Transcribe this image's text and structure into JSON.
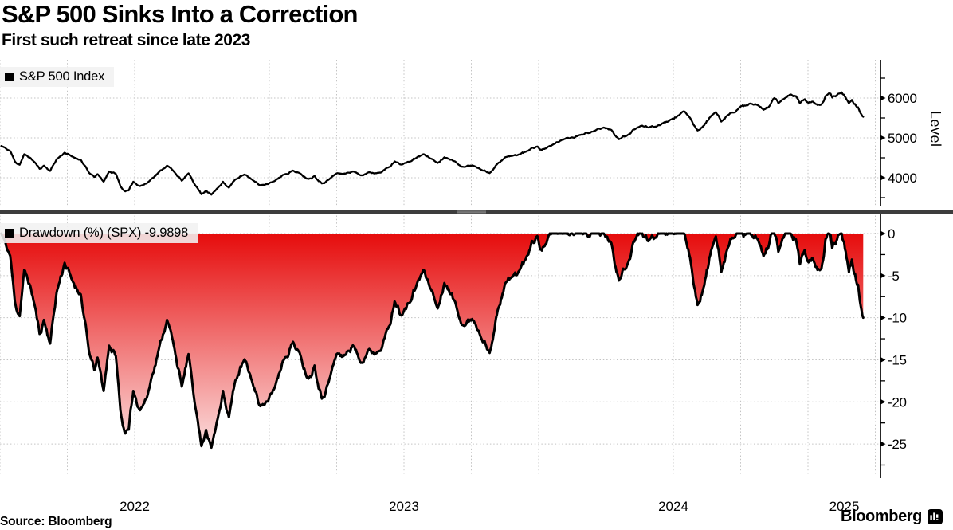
{
  "header": {
    "title": "S&P 500 Sinks Into a Correction",
    "subtitle": "First such retreat since late 2023"
  },
  "footer": {
    "source": "Source: Bloomberg",
    "brand": "Bloomberg"
  },
  "colors": {
    "line": "#000000",
    "grid": "#c3c3c3",
    "separator": "#3d3d3d",
    "separator_handle": "#a0a0a0",
    "legend_bg": "#f1f1f1",
    "fill_top": "#e60c0c",
    "fill_bottom": "#fdefef"
  },
  "chart_data": [
    {
      "type": "line",
      "name": "S&P 500 Index",
      "legend": "S&P 500 Index",
      "ylabel": "Level",
      "ylim": [
        3300,
        6960
      ],
      "yticks": [
        4000,
        5000,
        6000
      ],
      "yticks_minor": [
        3500,
        4500,
        5500,
        6500
      ],
      "x_range": [
        2022.0,
        2025.27
      ],
      "x_tick_labels": [
        "2022",
        "2023",
        "2024",
        "2025"
      ],
      "grid": "quarterly dashed verticals + horizontal at major yticks",
      "legend_position": "top-left",
      "points": [
        [
          2022.005,
          4797
        ],
        [
          2022.022,
          4733
        ],
        [
          2022.038,
          4670
        ],
        [
          2022.055,
          4410
        ],
        [
          2022.073,
          4326
        ],
        [
          2022.09,
          4590
        ],
        [
          2022.112,
          4500
        ],
        [
          2022.13,
          4380
        ],
        [
          2022.147,
          4225
        ],
        [
          2022.163,
          4305
        ],
        [
          2022.186,
          4170
        ],
        [
          2022.21,
          4460
        ],
        [
          2022.24,
          4630
        ],
        [
          2022.265,
          4540
        ],
        [
          2022.3,
          4450
        ],
        [
          2022.33,
          4130
        ],
        [
          2022.35,
          4020
        ],
        [
          2022.362,
          4090
        ],
        [
          2022.385,
          3900
        ],
        [
          2022.405,
          4158
        ],
        [
          2022.43,
          4100
        ],
        [
          2022.447,
          3790
        ],
        [
          2022.462,
          3667
        ],
        [
          2022.478,
          3680
        ],
        [
          2022.495,
          3900
        ],
        [
          2022.52,
          3790
        ],
        [
          2022.545,
          3860
        ],
        [
          2022.565,
          3990
        ],
        [
          2022.59,
          4140
        ],
        [
          2022.62,
          4305
        ],
        [
          2022.648,
          4140
        ],
        [
          2022.675,
          3925
        ],
        [
          2022.7,
          4110
        ],
        [
          2022.728,
          3785
        ],
        [
          2022.748,
          3586
        ],
        [
          2022.765,
          3678
        ],
        [
          2022.785,
          3577
        ],
        [
          2022.808,
          3740
        ],
        [
          2022.828,
          3900
        ],
        [
          2022.85,
          3750
        ],
        [
          2022.874,
          3960
        ],
        [
          2022.908,
          4080
        ],
        [
          2022.935,
          3960
        ],
        [
          2022.963,
          3818
        ],
        [
          2022.995,
          3840
        ],
        [
          2023.02,
          3920
        ],
        [
          2023.05,
          4070
        ],
        [
          2023.088,
          4180
        ],
        [
          2023.118,
          4090
        ],
        [
          2023.145,
          3970
        ],
        [
          2023.168,
          4045
        ],
        [
          2023.195,
          3856
        ],
        [
          2023.22,
          3950
        ],
        [
          2023.25,
          4110
        ],
        [
          2023.282,
          4105
        ],
        [
          2023.31,
          4160
        ],
        [
          2023.34,
          4060
        ],
        [
          2023.368,
          4135
        ],
        [
          2023.398,
          4115
        ],
        [
          2023.425,
          4192
        ],
        [
          2023.45,
          4282
        ],
        [
          2023.465,
          4410
        ],
        [
          2023.49,
          4330
        ],
        [
          2023.52,
          4400
        ],
        [
          2023.548,
          4510
        ],
        [
          2023.573,
          4590
        ],
        [
          2023.6,
          4480
        ],
        [
          2023.625,
          4370
        ],
        [
          2023.65,
          4515
        ],
        [
          2023.678,
          4455
        ],
        [
          2023.702,
          4330
        ],
        [
          2023.728,
          4274
        ],
        [
          2023.753,
          4310
        ],
        [
          2023.78,
          4230
        ],
        [
          2023.818,
          4117
        ],
        [
          2023.848,
          4360
        ],
        [
          2023.875,
          4510
        ],
        [
          2023.903,
          4550
        ],
        [
          2023.928,
          4585
        ],
        [
          2023.952,
          4650
        ],
        [
          2023.975,
          4755
        ],
        [
          2023.995,
          4783
        ],
        [
          2024.012,
          4700
        ],
        [
          2024.032,
          4760
        ],
        [
          2024.055,
          4840
        ],
        [
          2024.08,
          4928
        ],
        [
          2024.118,
          5000
        ],
        [
          2024.158,
          5080
        ],
        [
          2024.19,
          5120
        ],
        [
          2024.222,
          5230
        ],
        [
          2024.245,
          5254
        ],
        [
          2024.27,
          5200
        ],
        [
          2024.298,
          4967
        ],
        [
          2024.33,
          5070
        ],
        [
          2024.358,
          5220
        ],
        [
          2024.385,
          5308
        ],
        [
          2024.408,
          5260
        ],
        [
          2024.43,
          5278
        ],
        [
          2024.458,
          5360
        ],
        [
          2024.49,
          5460
        ],
        [
          2024.518,
          5560
        ],
        [
          2024.54,
          5667
        ],
        [
          2024.562,
          5505
        ],
        [
          2024.59,
          5186
        ],
        [
          2024.615,
          5320
        ],
        [
          2024.64,
          5550
        ],
        [
          2024.658,
          5648
        ],
        [
          2024.678,
          5408
        ],
        [
          2024.7,
          5560
        ],
        [
          2024.722,
          5635
        ],
        [
          2024.745,
          5762
        ],
        [
          2024.77,
          5815
        ],
        [
          2024.795,
          5841
        ],
        [
          2024.818,
          5800
        ],
        [
          2024.835,
          5705
        ],
        [
          2024.855,
          5783
        ],
        [
          2024.875,
          6001
        ],
        [
          2024.89,
          5871
        ],
        [
          2024.912,
          5987
        ],
        [
          2024.935,
          6090
        ],
        [
          2024.955,
          6050
        ],
        [
          2024.97,
          5867
        ],
        [
          2024.988,
          5970
        ],
        [
          2025.002,
          5882
        ],
        [
          2025.018,
          5909
        ],
        [
          2025.035,
          5827
        ],
        [
          2025.05,
          5836
        ],
        [
          2025.065,
          6049
        ],
        [
          2025.078,
          6119
        ],
        [
          2025.09,
          6012
        ],
        [
          2025.105,
          6061
        ],
        [
          2025.125,
          6144
        ],
        [
          2025.14,
          6013
        ],
        [
          2025.152,
          5862
        ],
        [
          2025.163,
          5954
        ],
        [
          2025.175,
          5850
        ],
        [
          2025.186,
          5770
        ],
        [
          2025.196,
          5614
        ],
        [
          2025.205,
          5530
        ]
      ]
    },
    {
      "type": "area",
      "name": "Drawdown (%) (SPX)",
      "legend": "Drawdown (%) (SPX) -9.9898",
      "last_value": -9.9898,
      "derived_from": "percent drawdown of panel-0 series from its running peak",
      "ylim": [
        -30.2,
        0.95
      ],
      "yticks": [
        0,
        -5,
        -10,
        -15,
        -20,
        -25
      ],
      "yticks_minor": [
        2.5,
        -2.5,
        -7.5,
        -12.5,
        -17.5,
        -22.5,
        -27.5
      ],
      "legend_position": "top-left",
      "fill_gradient": [
        "#e60c0c",
        "#fdefef"
      ],
      "key_drawdowns": [
        {
          "date": 2022.005,
          "dd": 0
        },
        {
          "date": 2022.462,
          "dd": -23.6
        },
        {
          "date": 2022.785,
          "dd": -25.4
        },
        {
          "date": 2023.573,
          "dd": -4.3
        },
        {
          "date": 2023.818,
          "dd": -14.2
        },
        {
          "date": 2024.298,
          "dd": -5.5
        },
        {
          "date": 2024.59,
          "dd": -8.5
        },
        {
          "date": 2025.125,
          "dd": 0
        },
        {
          "date": 2025.205,
          "dd": -9.9898
        }
      ]
    }
  ]
}
